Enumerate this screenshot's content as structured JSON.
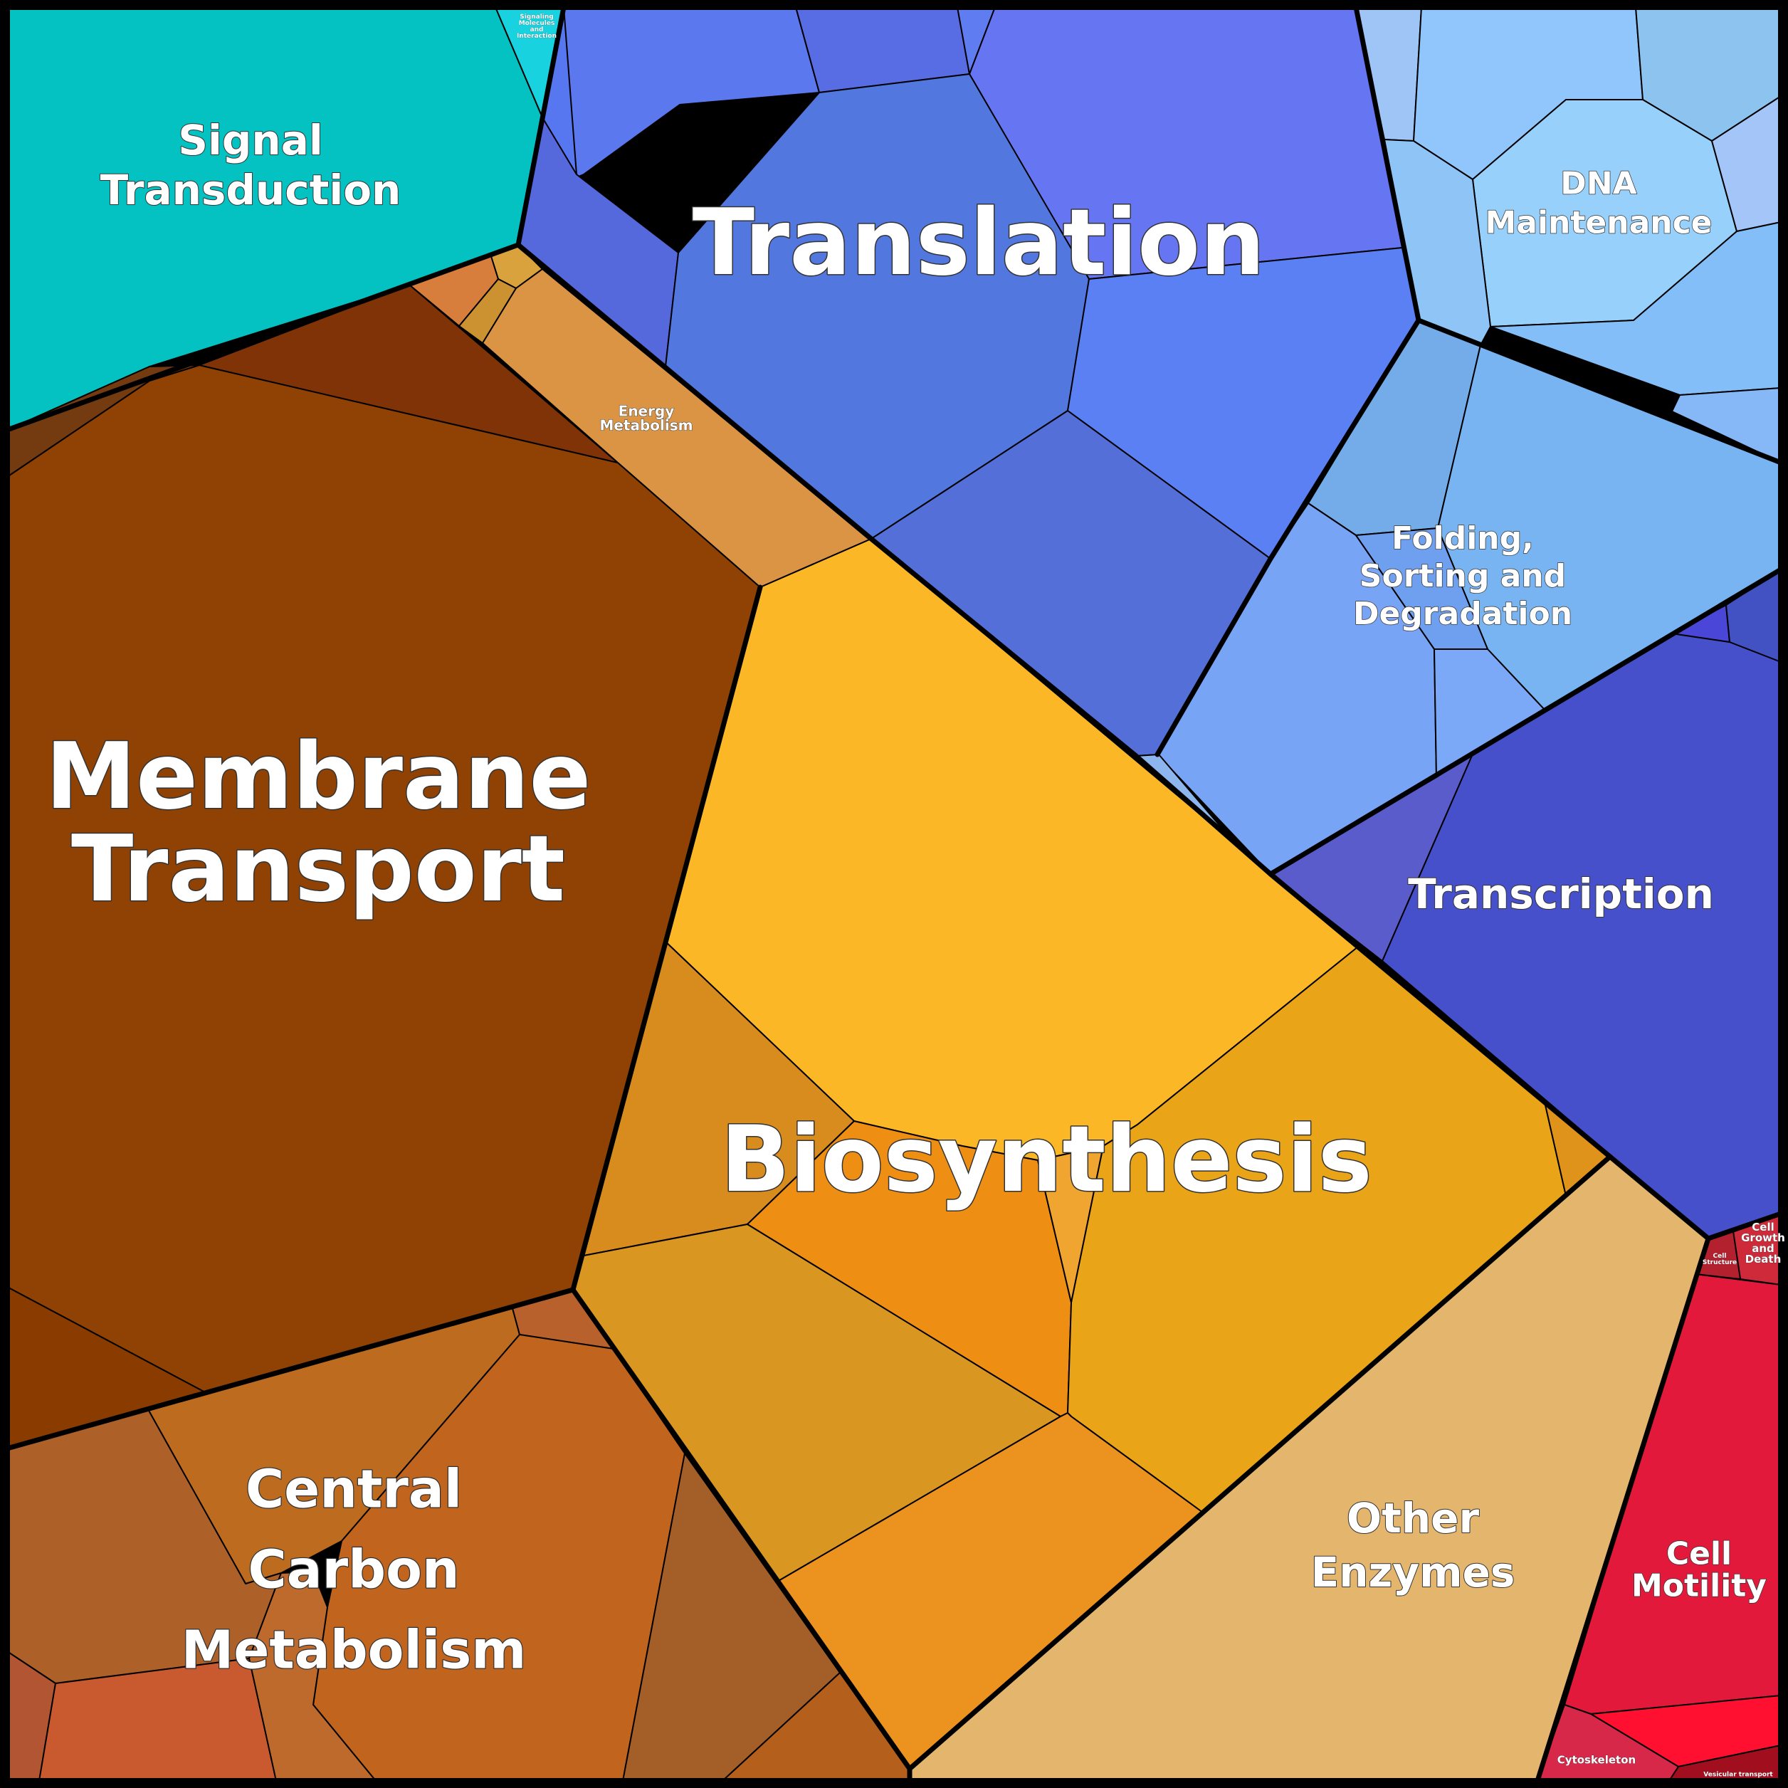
{
  "categories": [
    {
      "key": "translation",
      "label": "Translation",
      "color": "#5c78ee"
    },
    {
      "key": "membrane_transport",
      "label": "Membrane Transport",
      "color": "#8f4203"
    },
    {
      "key": "biosynthesis",
      "label": "Biosynthesis",
      "color": "#e9a418"
    },
    {
      "key": "central_carbon_metabolism",
      "label": "Central Carbon Metabolism",
      "color": "#c0641e"
    },
    {
      "key": "signal_transduction",
      "label": "Signal Transduction",
      "color": "#04c2c2"
    },
    {
      "key": "dna_maintenance",
      "label": "DNA Maintenance",
      "color": "#93c9fb"
    },
    {
      "key": "folding_sorting_degradation",
      "label": "Folding, Sorting and Degradation",
      "color": "#76a6f4"
    },
    {
      "key": "transcription",
      "label": "Transcription",
      "color": "#4650cb"
    },
    {
      "key": "other_enzymes",
      "label": "Other Enzymes",
      "color": "#e3b56d"
    },
    {
      "key": "cell_motility",
      "label": "Cell Motility",
      "color": "#e3193c"
    },
    {
      "key": "energy_metabolism",
      "label": "Energy Metabolism",
      "color": "#db9444"
    },
    {
      "key": "signaling_molecules_and_interaction",
      "label": "Signaling Molecules and Interaction",
      "color": "#18d3df"
    },
    {
      "key": "cell_growth_and_death",
      "label": "Cell Growth and Death",
      "color": "#cf2a3a"
    },
    {
      "key": "cell_structure",
      "label": "Cell Structure",
      "color": "#b3202e"
    },
    {
      "key": "cytoskeleton",
      "label": "Cytoskeleton",
      "color": "#d8284a"
    },
    {
      "key": "vesicular_transport",
      "label": "Vesicular transport",
      "color": "#a10f1f"
    }
  ],
  "labels": {
    "translation": [
      "Translation"
    ],
    "membrane_transport": [
      "Membrane",
      "Transport"
    ],
    "biosynthesis": [
      "Biosynthesis"
    ],
    "central_carbon_metabolism": [
      "Central",
      "Carbon",
      "Metabolism"
    ],
    "signal_transduction": [
      "Signal",
      "Transduction"
    ],
    "dna_maintenance": [
      "DNA",
      "Maintenance"
    ],
    "folding_sorting_degradation": [
      "Folding,",
      "Sorting and",
      "Degradation"
    ],
    "transcription": [
      "Transcription"
    ],
    "other_enzymes": [
      "Other",
      "Enzymes"
    ],
    "cell_motility": [
      "Cell",
      "Motility"
    ],
    "energy_metabolism": [
      "Energy",
      "Metabolism"
    ],
    "signaling_molecules_and_interaction": [
      "Signaling",
      "Molecules",
      "and",
      "Interaction"
    ],
    "cell_growth_and_death": [
      "Cell",
      "Growth",
      "and",
      "Death"
    ],
    "cell_structure": [
      "Cell",
      "Structure"
    ],
    "cytoskeleton": [
      "Cytoskeleton"
    ],
    "vesicular_transport": [
      "Vesicular transport"
    ]
  }
}
